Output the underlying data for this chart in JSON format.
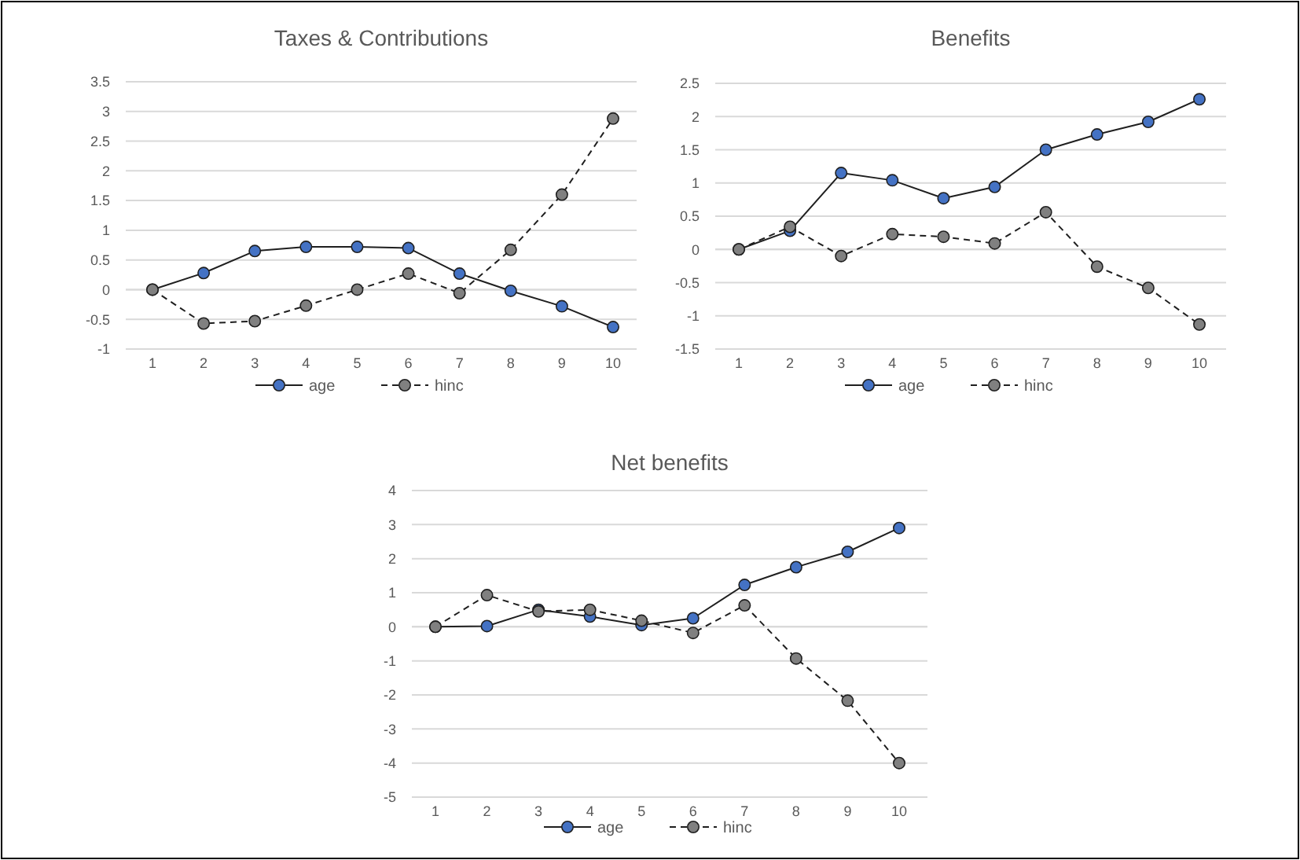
{
  "chart_data": [
    {
      "type": "line",
      "title": "Taxes & Contributions",
      "categories": [
        "1",
        "2",
        "3",
        "4",
        "5",
        "6",
        "7",
        "8",
        "9",
        "10"
      ],
      "series": [
        {
          "name": "age",
          "color": "#4472c4",
          "line_style": "solid",
          "values": [
            0,
            0.28,
            0.65,
            0.72,
            0.72,
            0.7,
            0.27,
            -0.02,
            -0.28,
            -0.63
          ]
        },
        {
          "name": "hinc",
          "color": "#808080",
          "line_style": "dashed",
          "values": [
            0,
            -0.57,
            -0.53,
            -0.27,
            0,
            0.27,
            -0.06,
            0.67,
            1.6,
            2.88
          ]
        }
      ],
      "ylim": [
        -1,
        3.5
      ],
      "yticks": [
        -1,
        -0.5,
        0,
        0.5,
        1,
        1.5,
        2,
        2.5,
        3,
        3.5
      ],
      "grid": "y",
      "legend": "bottom",
      "marker": "circle"
    },
    {
      "type": "line",
      "title": "Benefits",
      "categories": [
        "1",
        "2",
        "3",
        "4",
        "5",
        "6",
        "7",
        "8",
        "9",
        "10"
      ],
      "series": [
        {
          "name": "age",
          "color": "#4472c4",
          "line_style": "solid",
          "values": [
            0,
            0.28,
            1.15,
            1.04,
            0.77,
            0.94,
            1.5,
            1.73,
            1.92,
            2.26
          ]
        },
        {
          "name": "hinc",
          "color": "#808080",
          "line_style": "dashed",
          "values": [
            0,
            0.34,
            -0.1,
            0.23,
            0.19,
            0.09,
            0.56,
            -0.26,
            -0.58,
            -1.13
          ]
        }
      ],
      "ylim": [
        -1.5,
        2.5
      ],
      "yticks": [
        -1.5,
        -1,
        -0.5,
        0,
        0.5,
        1,
        1.5,
        2,
        2.5
      ],
      "grid": "y",
      "legend": "bottom",
      "marker": "circle"
    },
    {
      "type": "line",
      "title": "Net benefits",
      "categories": [
        "1",
        "2",
        "3",
        "4",
        "5",
        "6",
        "7",
        "8",
        "9",
        "10"
      ],
      "series": [
        {
          "name": "age",
          "color": "#4472c4",
          "line_style": "solid",
          "values": [
            0,
            0.02,
            0.5,
            0.3,
            0.05,
            0.25,
            1.23,
            1.75,
            2.2,
            2.9
          ]
        },
        {
          "name": "hinc",
          "color": "#808080",
          "line_style": "dashed",
          "values": [
            0,
            0.93,
            0.45,
            0.5,
            0.18,
            -0.18,
            0.63,
            -0.93,
            -2.17,
            -4
          ]
        }
      ],
      "ylim": [
        -5,
        4
      ],
      "yticks": [
        -5,
        -4,
        -3,
        -2,
        -1,
        0,
        1,
        2,
        3,
        4
      ],
      "grid": "y",
      "legend": "bottom",
      "marker": "circle"
    }
  ]
}
